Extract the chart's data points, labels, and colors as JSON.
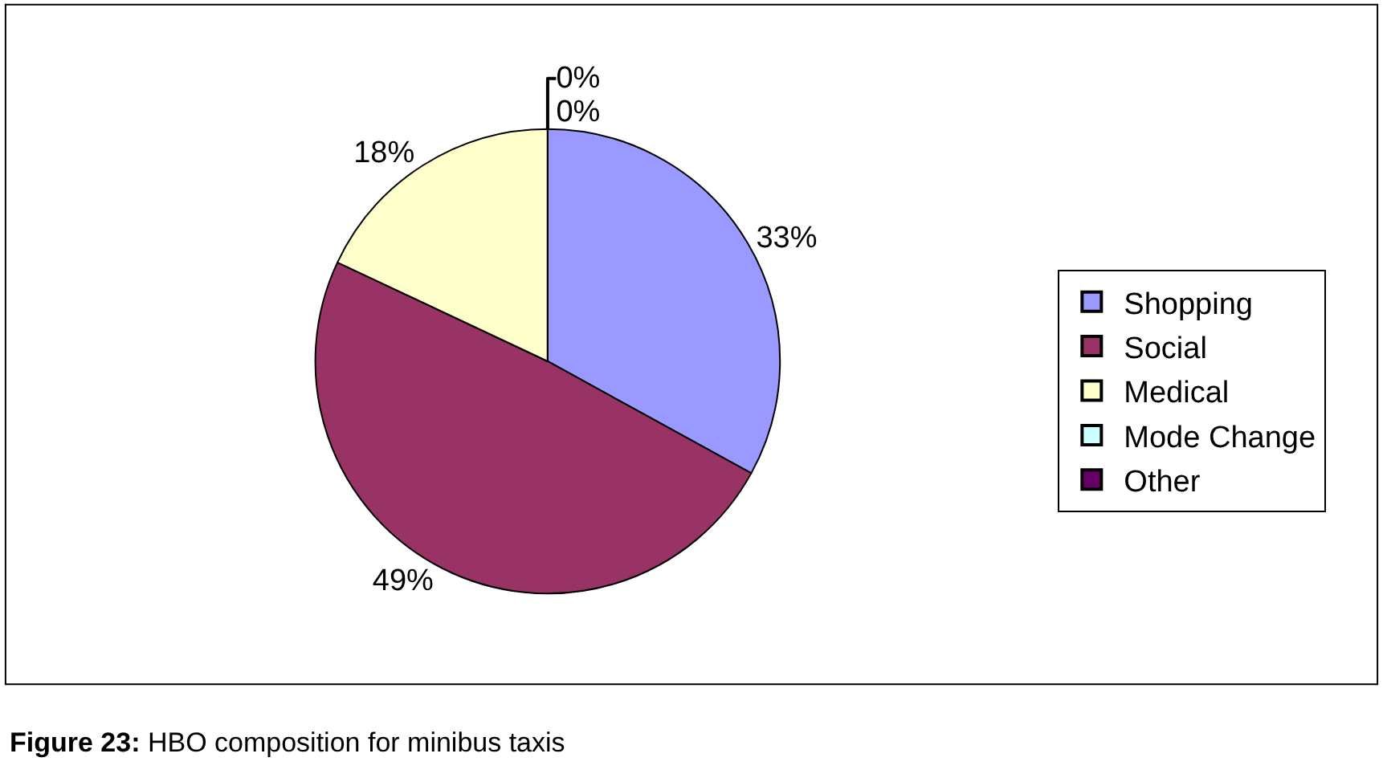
{
  "chart_data": {
    "type": "pie",
    "categories": [
      "Shopping",
      "Social",
      "Medical",
      "Mode Change",
      "Other"
    ],
    "values": [
      33,
      49,
      18,
      0,
      0
    ],
    "colors": [
      "#9999ff",
      "#993366",
      "#ffffcc",
      "#ccffff",
      "#660066"
    ],
    "value_labels": [
      "33%",
      "49%",
      "18%",
      "0%",
      "0%"
    ],
    "legend": "right",
    "annotations": [
      "Figure 23:",
      "HBO composition for minibus taxis"
    ]
  }
}
